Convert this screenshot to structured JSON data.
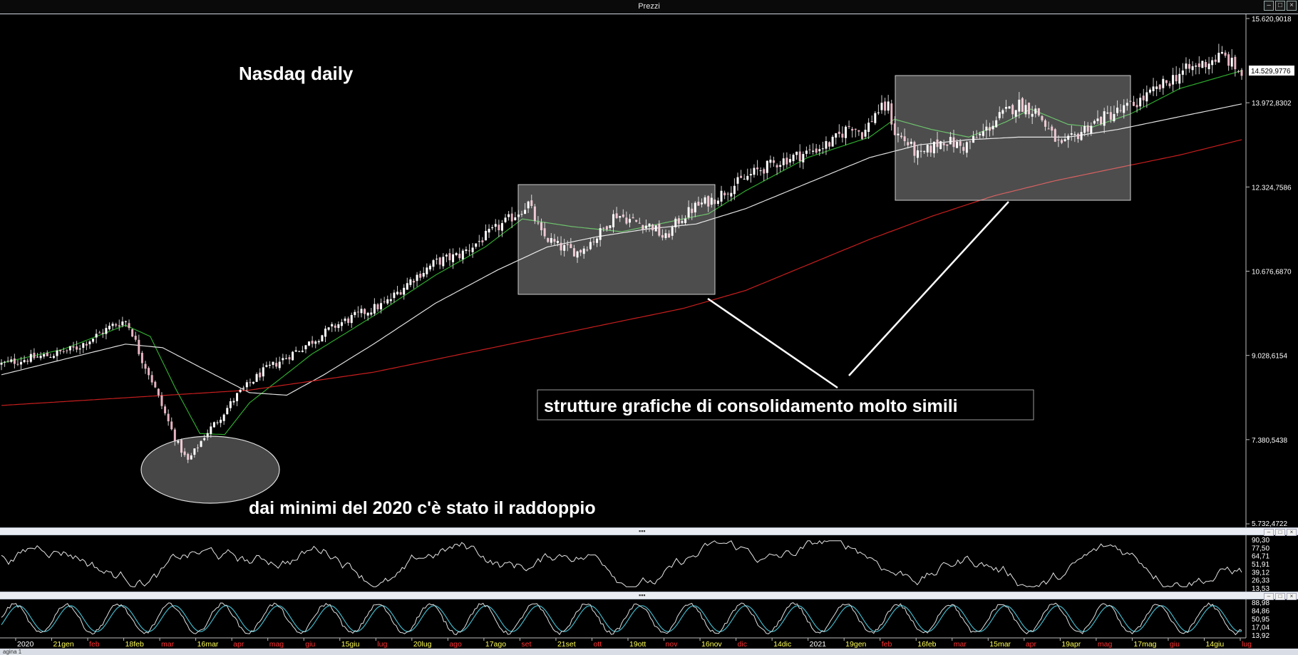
{
  "window": {
    "title": "Prezzi"
  },
  "annotations": {
    "title": "Nasdaq daily",
    "consolidation_note": "strutture grafiche di consolidamento molto simili",
    "doubling_note": "dai minimi del 2020 c'è stato il raddoppio"
  },
  "colors": {
    "background": "#000000",
    "bull_candle": "#ffffff",
    "bear_candle": "#e8b4c2",
    "ma_fast": "#2ea82e",
    "ma_mid": "#e0e0e0",
    "ma_slow": "#c81e1e",
    "stoch_k": "#e0e0e0",
    "stoch_d": "#41b6c8"
  },
  "chart_data": [
    {
      "type": "candlestick",
      "name": "Prezzi",
      "ylim": [
        5732.4722,
        15620.9018
      ],
      "yticks": [
        "15.620,9018",
        "13.972,8302",
        "12.324,7586",
        "10.676,6870",
        "9.028,6154",
        "7.380,5438",
        "5.732,4722"
      ],
      "last_price_label": "14.529,9776",
      "x_labels": [
        {
          "text": "2020",
          "color": "#ffffff"
        },
        {
          "text": "21gen",
          "color": "#ffff55"
        },
        {
          "text": "feb",
          "color": "#ff3030"
        },
        {
          "text": "18feb",
          "color": "#ffff55"
        },
        {
          "text": "mar",
          "color": "#ff3030"
        },
        {
          "text": "16mar",
          "color": "#ffff55"
        },
        {
          "text": "apr",
          "color": "#ff3030"
        },
        {
          "text": "mag",
          "color": "#ff3030"
        },
        {
          "text": "giu",
          "color": "#ff3030"
        },
        {
          "text": "15giu",
          "color": "#ffff55"
        },
        {
          "text": "lug",
          "color": "#ff3030"
        },
        {
          "text": "20lug",
          "color": "#ffff55"
        },
        {
          "text": "ago",
          "color": "#ff3030"
        },
        {
          "text": "17ago",
          "color": "#ffff55"
        },
        {
          "text": "set",
          "color": "#ff3030"
        },
        {
          "text": "21set",
          "color": "#ffff55"
        },
        {
          "text": "ott",
          "color": "#ff3030"
        },
        {
          "text": "19ott",
          "color": "#ffff55"
        },
        {
          "text": "nov",
          "color": "#ff3030"
        },
        {
          "text": "16nov",
          "color": "#ffff55"
        },
        {
          "text": "dic",
          "color": "#ff3030"
        },
        {
          "text": "14dic",
          "color": "#ffff55"
        },
        {
          "text": "2021",
          "color": "#ffffff"
        },
        {
          "text": "19gen",
          "color": "#ffff55"
        },
        {
          "text": "feb",
          "color": "#ff3030"
        },
        {
          "text": "16feb",
          "color": "#ffff55"
        },
        {
          "text": "mar",
          "color": "#ff3030"
        },
        {
          "text": "15mar",
          "color": "#ffff55"
        },
        {
          "text": "apr",
          "color": "#ff3030"
        },
        {
          "text": "19apr",
          "color": "#ffff55"
        },
        {
          "text": "mag",
          "color": "#ff3030"
        },
        {
          "text": "17mag",
          "color": "#ffff55"
        },
        {
          "text": "giu",
          "color": "#ff3030"
        },
        {
          "text": "14giu",
          "color": "#ffff55"
        },
        {
          "text": "lug",
          "color": "#ff3030"
        }
      ],
      "close_path": [
        [
          0,
          8860
        ],
        [
          0.02,
          8960
        ],
        [
          0.04,
          9040
        ],
        [
          0.06,
          9170
        ],
        [
          0.075,
          9390
        ],
        [
          0.09,
          9620
        ],
        [
          0.1,
          9710
        ],
        [
          0.105,
          9510
        ],
        [
          0.112,
          9020
        ],
        [
          0.12,
          8620
        ],
        [
          0.13,
          8000
        ],
        [
          0.14,
          7400
        ],
        [
          0.15,
          6950
        ],
        [
          0.157,
          7200
        ],
        [
          0.165,
          7500
        ],
        [
          0.175,
          7780
        ],
        [
          0.19,
          8250
        ],
        [
          0.21,
          8700
        ],
        [
          0.23,
          9000
        ],
        [
          0.25,
          9300
        ],
        [
          0.27,
          9620
        ],
        [
          0.29,
          9850
        ],
        [
          0.31,
          10050
        ],
        [
          0.33,
          10500
        ],
        [
          0.35,
          10850
        ],
        [
          0.37,
          11000
        ],
        [
          0.39,
          11350
        ],
        [
          0.41,
          11700
        ],
        [
          0.425,
          12000
        ],
        [
          0.435,
          11400
        ],
        [
          0.45,
          11150
        ],
        [
          0.465,
          11050
        ],
        [
          0.48,
          11350
        ],
        [
          0.495,
          11800
        ],
        [
          0.51,
          11650
        ],
        [
          0.525,
          11550
        ],
        [
          0.535,
          11300
        ],
        [
          0.545,
          11650
        ],
        [
          0.56,
          11950
        ],
        [
          0.575,
          12100
        ],
        [
          0.59,
          12350
        ],
        [
          0.61,
          12650
        ],
        [
          0.63,
          12850
        ],
        [
          0.65,
          13000
        ],
        [
          0.67,
          13200
        ],
        [
          0.685,
          13550
        ],
        [
          0.695,
          13350
        ],
        [
          0.705,
          13800
        ],
        [
          0.715,
          13900
        ],
        [
          0.72,
          13400
        ],
        [
          0.73,
          13200
        ],
        [
          0.74,
          12900
        ],
        [
          0.75,
          13100
        ],
        [
          0.76,
          13250
        ],
        [
          0.775,
          13100
        ],
        [
          0.79,
          13350
        ],
        [
          0.805,
          13700
        ],
        [
          0.82,
          13950
        ],
        [
          0.835,
          13800
        ],
        [
          0.845,
          13400
        ],
        [
          0.855,
          13100
        ],
        [
          0.865,
          13300
        ],
        [
          0.875,
          13500
        ],
        [
          0.89,
          13700
        ],
        [
          0.91,
          13900
        ],
        [
          0.93,
          14200
        ],
        [
          0.95,
          14550
        ],
        [
          0.97,
          14750
        ],
        [
          0.985,
          14900
        ],
        [
          1,
          14530
        ]
      ],
      "moving_averages": [
        {
          "color": "#2ea82e",
          "path": [
            [
              0,
              8880
            ],
            [
              0.05,
              9150
            ],
            [
              0.1,
              9620
            ],
            [
              0.12,
              9400
            ],
            [
              0.14,
              8400
            ],
            [
              0.16,
              7500
            ],
            [
              0.18,
              7480
            ],
            [
              0.2,
              8100
            ],
            [
              0.25,
              9050
            ],
            [
              0.3,
              9800
            ],
            [
              0.35,
              10600
            ],
            [
              0.39,
              11150
            ],
            [
              0.42,
              11700
            ],
            [
              0.46,
              11550
            ],
            [
              0.5,
              11450
            ],
            [
              0.54,
              11650
            ],
            [
              0.57,
              11800
            ],
            [
              0.6,
              12250
            ],
            [
              0.65,
              12900
            ],
            [
              0.7,
              13300
            ],
            [
              0.72,
              13650
            ],
            [
              0.75,
              13450
            ],
            [
              0.78,
              13300
            ],
            [
              0.81,
              13600
            ],
            [
              0.83,
              13850
            ],
            [
              0.86,
              13550
            ],
            [
              0.88,
              13500
            ],
            [
              0.91,
              13750
            ],
            [
              0.95,
              14250
            ],
            [
              1,
              14600
            ]
          ]
        },
        {
          "color": "#e0e0e0",
          "path": [
            [
              0,
              8650
            ],
            [
              0.05,
              8950
            ],
            [
              0.1,
              9250
            ],
            [
              0.13,
              9180
            ],
            [
              0.16,
              8800
            ],
            [
              0.2,
              8300
            ],
            [
              0.23,
              8250
            ],
            [
              0.26,
              8650
            ],
            [
              0.3,
              9250
            ],
            [
              0.35,
              10050
            ],
            [
              0.4,
              10700
            ],
            [
              0.44,
              11150
            ],
            [
              0.48,
              11350
            ],
            [
              0.52,
              11500
            ],
            [
              0.56,
              11600
            ],
            [
              0.6,
              11900
            ],
            [
              0.65,
              12400
            ],
            [
              0.7,
              12900
            ],
            [
              0.74,
              13150
            ],
            [
              0.78,
              13250
            ],
            [
              0.82,
              13300
            ],
            [
              0.86,
              13300
            ],
            [
              0.9,
              13450
            ],
            [
              0.95,
              13700
            ],
            [
              1,
              13950
            ]
          ]
        },
        {
          "color": "#c81e1e",
          "path": [
            [
              0,
              8050
            ],
            [
              0.1,
              8200
            ],
            [
              0.2,
              8350
            ],
            [
              0.3,
              8700
            ],
            [
              0.4,
              9200
            ],
            [
              0.5,
              9700
            ],
            [
              0.55,
              9950
            ],
            [
              0.6,
              10300
            ],
            [
              0.65,
              10800
            ],
            [
              0.7,
              11300
            ],
            [
              0.75,
              11750
            ],
            [
              0.8,
              12150
            ],
            [
              0.85,
              12450
            ],
            [
              0.9,
              12700
            ],
            [
              0.95,
              12950
            ],
            [
              1,
              13250
            ]
          ]
        }
      ]
    },
    {
      "type": "line",
      "name": "oscillator",
      "ylim": [
        0,
        100
      ],
      "yticks": [
        "90,30",
        "77,50",
        "64,71",
        "51,91",
        "39,12",
        "26,33",
        "13,53"
      ]
    },
    {
      "type": "line",
      "name": "stochastic",
      "ylim": [
        0,
        100
      ],
      "yticks": [
        "88,98",
        "84,86",
        "50,95",
        "17,04",
        "13,92"
      ]
    }
  ],
  "status": {
    "tab": "agina 1"
  }
}
